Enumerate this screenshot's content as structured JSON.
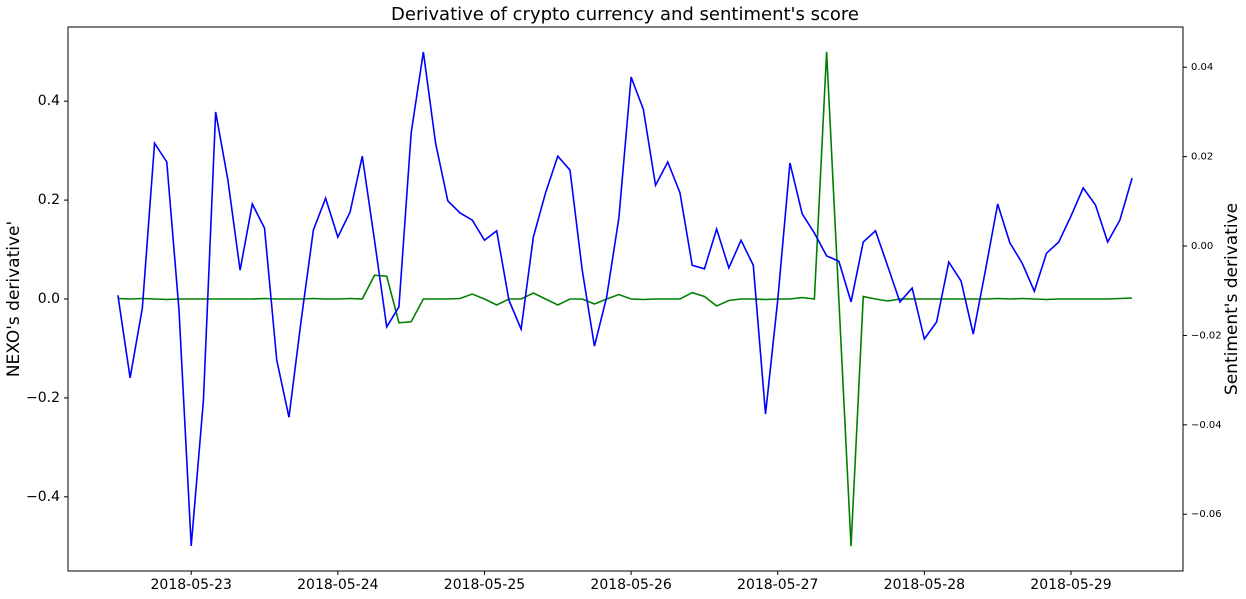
{
  "chart_data": {
    "type": "line",
    "title": "Derivative of crypto currency and sentiment's score",
    "ylabel": "NEXO's derivative'",
    "y2label": "Sentiment's derivative",
    "ylabel_color": "#008000",
    "y2label_color": "#0000ff",
    "x": [
      "2018-05-22T12:00",
      "2018-05-22T14:00",
      "2018-05-22T16:00",
      "2018-05-22T18:00",
      "2018-05-22T20:00",
      "2018-05-22T22:00",
      "2018-05-23T00:00",
      "2018-05-23T02:00",
      "2018-05-23T04:00",
      "2018-05-23T06:00",
      "2018-05-23T08:00",
      "2018-05-23T10:00",
      "2018-05-23T12:00",
      "2018-05-23T14:00",
      "2018-05-23T16:00",
      "2018-05-23T18:00",
      "2018-05-23T20:00",
      "2018-05-23T22:00",
      "2018-05-24T00:00",
      "2018-05-24T02:00",
      "2018-05-24T04:00",
      "2018-05-24T06:00",
      "2018-05-24T08:00",
      "2018-05-24T10:00",
      "2018-05-24T12:00",
      "2018-05-24T14:00",
      "2018-05-24T16:00",
      "2018-05-24T18:00",
      "2018-05-24T20:00",
      "2018-05-24T22:00",
      "2018-05-25T00:00",
      "2018-05-25T02:00",
      "2018-05-25T04:00",
      "2018-05-25T06:00",
      "2018-05-25T08:00",
      "2018-05-25T10:00",
      "2018-05-25T12:00",
      "2018-05-25T14:00",
      "2018-05-25T16:00",
      "2018-05-25T18:00",
      "2018-05-25T20:00",
      "2018-05-25T22:00",
      "2018-05-26T00:00",
      "2018-05-26T02:00",
      "2018-05-26T04:00",
      "2018-05-26T06:00",
      "2018-05-26T08:00",
      "2018-05-26T10:00",
      "2018-05-26T12:00",
      "2018-05-26T14:00",
      "2018-05-26T16:00",
      "2018-05-26T18:00",
      "2018-05-26T20:00",
      "2018-05-26T22:00",
      "2018-05-27T00:00",
      "2018-05-27T02:00",
      "2018-05-27T04:00",
      "2018-05-27T06:00",
      "2018-05-27T08:00",
      "2018-05-27T10:00",
      "2018-05-27T12:00",
      "2018-05-27T14:00",
      "2018-05-27T16:00",
      "2018-05-27T18:00",
      "2018-05-27T20:00",
      "2018-05-27T22:00",
      "2018-05-28T00:00",
      "2018-05-28T02:00",
      "2018-05-28T04:00",
      "2018-05-28T06:00",
      "2018-05-28T08:00",
      "2018-05-28T10:00",
      "2018-05-28T12:00",
      "2018-05-28T14:00",
      "2018-05-28T16:00",
      "2018-05-28T18:00",
      "2018-05-28T20:00",
      "2018-05-28T22:00",
      "2018-05-29T00:00",
      "2018-05-29T02:00",
      "2018-05-29T04:00",
      "2018-05-29T06:00",
      "2018-05-29T08:00",
      "2018-05-29T10:00"
    ],
    "series": [
      {
        "color": "#008000",
        "axis": "y",
        "values": [
          0.001,
          0.0,
          0.001,
          0.0,
          -0.001,
          0.0,
          0.0,
          0.0,
          0.0,
          0.0,
          0.0,
          0.0,
          0.001,
          0.0,
          0.0,
          0.0,
          0.001,
          0.0,
          0.0,
          0.001,
          0.0,
          0.048,
          0.046,
          -0.048,
          -0.046,
          0.0,
          0.0,
          0.0,
          0.001,
          0.01,
          0.0,
          -0.012,
          0.0,
          0.0,
          0.012,
          0.0,
          -0.012,
          0.0,
          0.0,
          -0.01,
          0.0,
          0.009,
          0.0,
          -0.001,
          0.0,
          0.0,
          0.0,
          0.013,
          0.005,
          -0.014,
          -0.003,
          0.0,
          0.0,
          -0.001,
          0.0,
          0.0,
          0.003,
          0.0,
          0.5,
          0.0,
          -0.5,
          0.005,
          0.0,
          -0.004,
          0.0,
          0.0,
          0.0,
          0.0,
          0.0,
          0.0,
          0.0,
          0.0,
          0.001,
          0.0,
          0.001,
          0.0,
          -0.001,
          0.0,
          0.0,
          0.0,
          0.0,
          0.0,
          0.001,
          0.002
        ]
      },
      {
        "color": "#0000ff",
        "axis": "y2",
        "values": [
          -0.011,
          -0.0295,
          -0.0139,
          0.023,
          0.0188,
          -0.0143,
          -0.0671,
          -0.0345,
          0.03,
          0.0148,
          -0.0054,
          0.0094,
          0.004,
          -0.0255,
          -0.0383,
          -0.0166,
          0.0036,
          0.0107,
          0.002,
          0.0076,
          0.0201,
          0.0013,
          -0.0181,
          -0.0136,
          0.0253,
          0.0434,
          0.023,
          0.0101,
          0.0074,
          0.0058,
          0.0013,
          0.0034,
          -0.0121,
          -0.0186,
          0.002,
          0.0119,
          0.0201,
          0.017,
          -0.0054,
          -0.0224,
          -0.0114,
          0.0063,
          0.0378,
          0.0306,
          0.0136,
          0.0188,
          0.0119,
          -0.0043,
          -0.0051,
          0.0038,
          -0.0049,
          0.0013,
          -0.0043,
          -0.0376,
          -0.0121,
          0.0186,
          0.0072,
          0.0029,
          -0.0022,
          -0.0034,
          -0.0125,
          0.0009,
          0.0034,
          -0.0045,
          -0.0125,
          -0.0094,
          -0.0208,
          -0.017,
          -0.0036,
          -0.0078,
          -0.0197,
          -0.0054,
          0.0094,
          0.0007,
          -0.0038,
          -0.0101,
          -0.0016,
          0.0009,
          0.0067,
          0.013,
          0.0092,
          0.0009,
          0.0058,
          0.0152
        ]
      }
    ],
    "xlim": [
      "2018-05-22T03:50",
      "2018-05-29T18:20"
    ],
    "xticks": [
      "2018-05-23",
      "2018-05-24",
      "2018-05-25",
      "2018-05-26",
      "2018-05-27",
      "2018-05-28",
      "2018-05-29"
    ],
    "ylim": [
      -0.55,
      0.55
    ],
    "yticks": [
      {
        "value": -0.4,
        "label": "−0.4"
      },
      {
        "value": -0.2,
        "label": "−0.2"
      },
      {
        "value": 0,
        "label": "0.0"
      },
      0.2,
      0.4
    ],
    "y2lim": [
      -0.0727,
      0.049
    ],
    "y2ticks": [
      {
        "value": -0.06,
        "label": "−0.06"
      },
      {
        "value": -0.04,
        "label": "−0.04"
      },
      {
        "value": -0.02,
        "label": "−0.02"
      },
      {
        "value": 0,
        "label": "0.00"
      },
      0.02,
      0.04
    ]
  }
}
